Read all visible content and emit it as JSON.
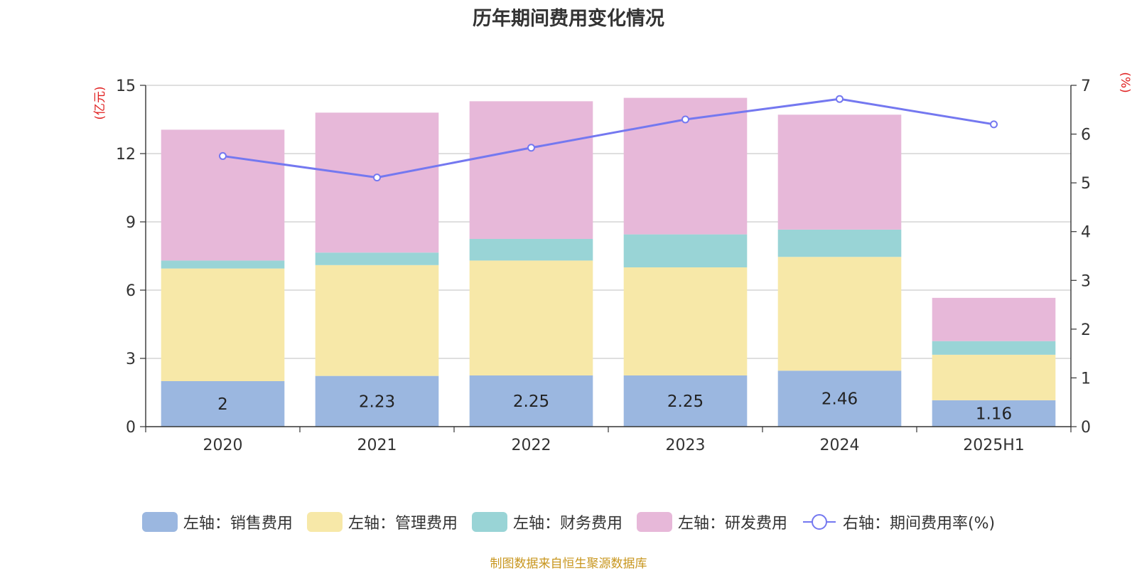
{
  "chart_data": {
    "type": "bar",
    "stacked": true,
    "title": "历年期间费用变化情况",
    "categories": [
      "2020",
      "2021",
      "2022",
      "2023",
      "2024",
      "2025H1"
    ],
    "y_left": {
      "label": "(亿元)",
      "range": [
        0,
        15
      ],
      "ticks": [
        "0",
        "3",
        "6",
        "9",
        "12",
        "15"
      ]
    },
    "y_right": {
      "label": "(%)",
      "range": [
        0,
        7
      ],
      "ticks": [
        "0",
        "1",
        "2",
        "3",
        "4",
        "5",
        "6",
        "7"
      ]
    },
    "series": [
      {
        "name": "左轴：销售费用",
        "type": "bar",
        "axis": "left",
        "color": "#9bb7e0",
        "values": [
          2,
          2.23,
          2.25,
          2.25,
          2.46,
          1.16
        ],
        "labels": [
          "2",
          "2.23",
          "2.25",
          "2.25",
          "2.46",
          "1.16"
        ]
      },
      {
        "name": "左轴：管理费用",
        "type": "bar",
        "axis": "left",
        "color": "#f7e8a8",
        "values": [
          4.95,
          4.87,
          5.05,
          4.75,
          5.0,
          2.0
        ]
      },
      {
        "name": "左轴：财务费用",
        "type": "bar",
        "axis": "left",
        "color": "#99d4d6",
        "values": [
          0.35,
          0.55,
          0.95,
          1.45,
          1.2,
          0.6
        ]
      },
      {
        "name": "左轴：研发费用",
        "type": "bar",
        "axis": "left",
        "color": "#e7b8d9",
        "values": [
          5.75,
          6.15,
          6.05,
          6.0,
          5.05,
          1.9
        ]
      },
      {
        "name": "右轴：期间费用率(%)",
        "type": "line",
        "axis": "right",
        "color": "#7478f0",
        "values": [
          5.55,
          5.11,
          5.72,
          6.3,
          6.72,
          6.2
        ]
      }
    ],
    "grid": true,
    "legend_position": "bottom",
    "axis_label_color": "#e02020"
  },
  "source_note": "制图数据来自恒生聚源数据库"
}
